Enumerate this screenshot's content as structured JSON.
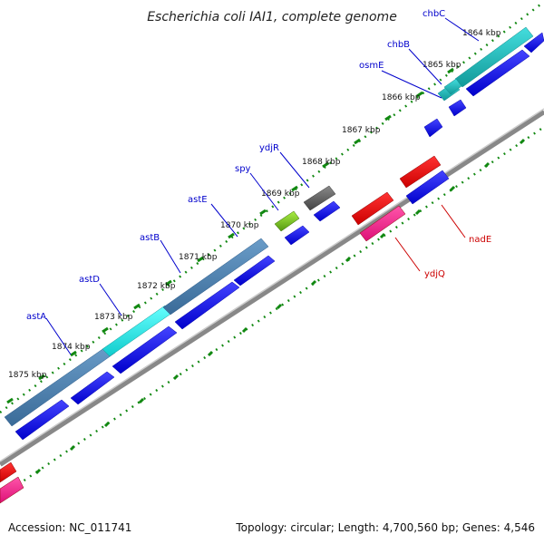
{
  "title": "Escherichia coli IAI1, complete genome",
  "footer": {
    "accession": "Accession: NC_011741",
    "stats": "Topology: circular; Length: 4,700,560 bp; Genes: 4,546"
  },
  "ticks": [
    "1864 kbp",
    "1865 kbp",
    "1866 kbp",
    "1867 kbp",
    "1868 kbp",
    "1869 kbp",
    "1870 kbp",
    "1871 kbp",
    "1872 kbp",
    "1873 kbp",
    "1874 kbp",
    "1875 kbp"
  ],
  "labels_plus": [
    "chbC",
    "chbB",
    "osmE",
    "ydjR",
    "spy",
    "astE",
    "astB",
    "astD",
    "astA"
  ],
  "labels_minus": [
    "nadE",
    "ydjQ"
  ],
  "colors": {
    "backbone": "#888888",
    "cds_plus": "#0000ee",
    "cds_minus": "#ee0000",
    "gene_steel": "#4a7fb0",
    "gene_cyan": "#22dddd",
    "gene_teal": "#22bbbb",
    "gene_gray": "#666666",
    "gene_green": "#77cc22",
    "gene_pink": "#ee2288",
    "tick_mark": "#118811",
    "label_plus": "#0000cc",
    "label_minus": "#cc0000"
  }
}
